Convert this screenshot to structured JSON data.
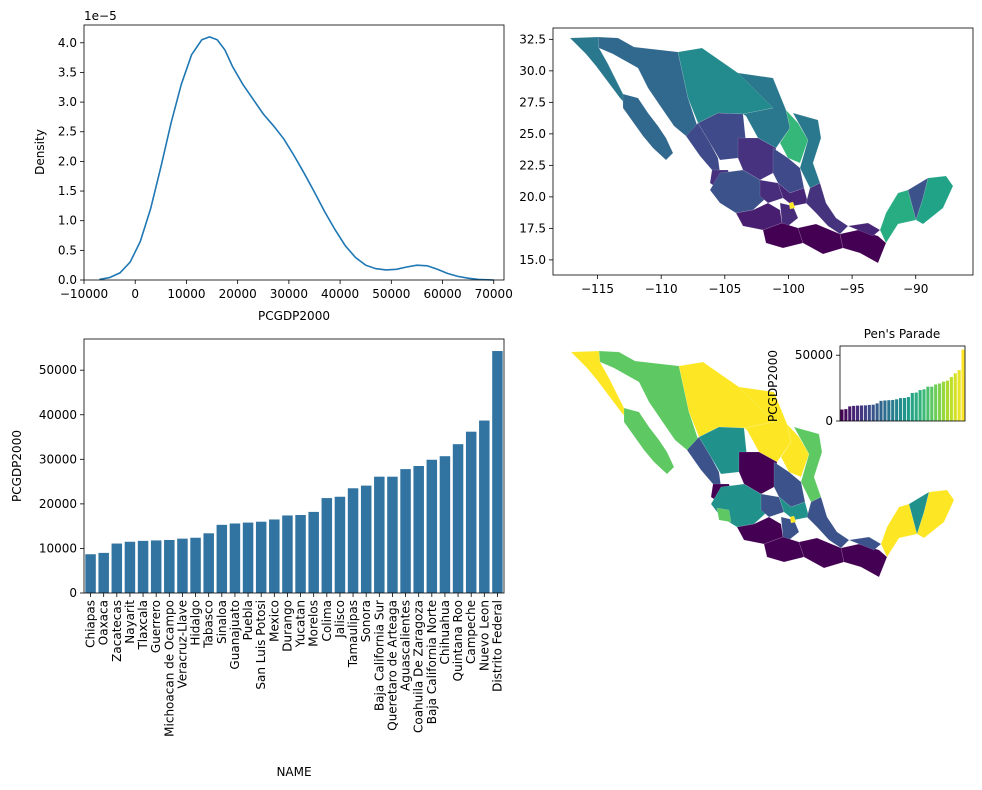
{
  "chart_data": [
    {
      "type": "line",
      "subtype": "kde",
      "xlabel": "PCGDP2000",
      "ylabel": "Density",
      "y_offset_label": "1e−5",
      "xlim": [
        -10000,
        72000
      ],
      "ylim": [
        0,
        4.3
      ],
      "x_ticks": [
        -10000,
        0,
        10000,
        20000,
        30000,
        40000,
        50000,
        60000,
        70000
      ],
      "x_tick_labels": [
        "−10000",
        "0",
        "10000",
        "20000",
        "30000",
        "40000",
        "50000",
        "60000",
        "70000"
      ],
      "y_ticks": [
        0,
        0.5,
        1.0,
        1.5,
        2.0,
        2.5,
        3.0,
        3.5,
        4.0
      ],
      "y_tick_labels": [
        "0.0",
        "0.5",
        "1.0",
        "1.5",
        "2.0",
        "2.5",
        "3.0",
        "3.5",
        "4.0"
      ],
      "x": [
        -7000,
        -5000,
        -3000,
        -1000,
        1000,
        3000,
        5000,
        7000,
        9000,
        11000,
        13000,
        14500,
        16000,
        17500,
        19000,
        21000,
        23000,
        25000,
        27000,
        29000,
        31000,
        33000,
        35000,
        37000,
        39000,
        41000,
        43000,
        45000,
        47000,
        49000,
        51000,
        53000,
        55000,
        57000,
        59000,
        61000,
        63000,
        65000,
        67000,
        70000
      ],
      "y": [
        0.01,
        0.04,
        0.12,
        0.3,
        0.65,
        1.2,
        1.9,
        2.65,
        3.3,
        3.8,
        4.05,
        4.1,
        4.05,
        3.88,
        3.6,
        3.3,
        3.05,
        2.8,
        2.6,
        2.38,
        2.1,
        1.8,
        1.48,
        1.15,
        0.85,
        0.58,
        0.38,
        0.25,
        0.19,
        0.17,
        0.18,
        0.22,
        0.25,
        0.24,
        0.18,
        0.11,
        0.06,
        0.03,
        0.01,
        0.0
      ],
      "color": "#1f77b4"
    },
    {
      "type": "choropleth",
      "x_ticks": [
        -115,
        -110,
        -105,
        -100,
        -95,
        -90
      ],
      "x_tick_labels": [
        "−115",
        "−110",
        "−105",
        "−100",
        "−95",
        "−90"
      ],
      "y_ticks": [
        15.0,
        17.5,
        20.0,
        22.5,
        25.0,
        27.5,
        30.0,
        32.5
      ],
      "y_tick_labels": [
        "15.0",
        "17.5",
        "20.0",
        "22.5",
        "25.0",
        "27.5",
        "30.0",
        "32.5"
      ],
      "xlim": [
        -118.5,
        -85.5
      ],
      "ylim": [
        13.8,
        33.4
      ],
      "colormap": "viridis"
    },
    {
      "type": "bar",
      "xlabel": "NAME",
      "ylabel": "PCGDP2000",
      "ylim": [
        0,
        57000
      ],
      "y_ticks": [
        0,
        10000,
        20000,
        30000,
        40000,
        50000
      ],
      "y_tick_labels": [
        "0",
        "10000",
        "20000",
        "30000",
        "40000",
        "50000"
      ],
      "color": "#3274a1",
      "categories": [
        "Chiapas",
        "Oaxaca",
        "Zacatecas",
        "Nayarit",
        "Tlaxcala",
        "Guerrero",
        "Michoacan de Ocampo",
        "Veracruz-Llave",
        "Hidalgo",
        "Tabasco",
        "Sinaloa",
        "Guanajuato",
        "Puebla",
        "San Luis Potosi",
        "Mexico",
        "Durango",
        "Yucatan",
        "Morelos",
        "Colima",
        "Jalisco",
        "Tamaulipas",
        "Sonora",
        "Baja California Sur",
        "Queretaro de Arteaga",
        "Aguascalientes",
        "Coahuila De Zaragoza",
        "Baja California Norte",
        "Chihuahua",
        "Quintana Roo",
        "Campeche",
        "Nuevo Leon",
        "Distrito Federal"
      ],
      "values": [
        8700,
        9000,
        11100,
        11500,
        11700,
        11800,
        11900,
        12200,
        12400,
        13400,
        15300,
        15600,
        15800,
        16000,
        16500,
        17400,
        17500,
        18200,
        21300,
        21600,
        23500,
        24100,
        26100,
        26100,
        27800,
        28500,
        29900,
        30700,
        33400,
        36200,
        38700,
        54300
      ]
    },
    {
      "type": "choropleth",
      "scheme": "quantiles",
      "colors": [
        "#440154",
        "#3b528b",
        "#21918c",
        "#5ec962",
        "#fde725"
      ]
    },
    {
      "type": "bar",
      "title": "Pen's Parade",
      "ylabel": "PCGDP2000",
      "y_ticks": [
        0,
        50000
      ],
      "y_tick_labels": [
        "0",
        "50000"
      ],
      "ylim": [
        0,
        57000
      ],
      "colormap": "viridis"
    }
  ]
}
